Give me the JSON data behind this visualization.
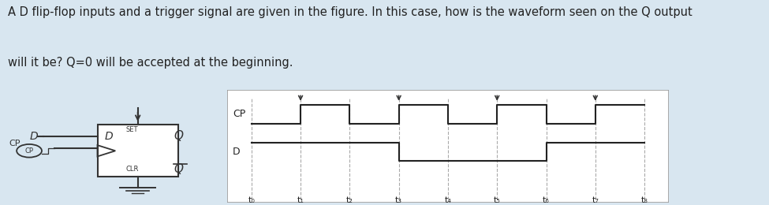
{
  "bg_color": "#d8e6f0",
  "box_bg": "#ffffff",
  "text_color": "#222222",
  "title_line1": "A D flip-flop inputs and a trigger signal are given in the figure. In this case, how is the waveform seen on the Q output",
  "title_line2": "will it be? Q=0 will be accepted at the beginning.",
  "title_fontsize": 10.5,
  "cp_label": "CP",
  "d_label": "D",
  "time_labels": [
    "t₀",
    "t₁",
    "t₂",
    "t₃",
    "t₄",
    "t₅",
    "t₆",
    "t₇",
    "t₈"
  ],
  "cp_times_x": [
    0,
    1,
    1,
    2,
    2,
    3,
    3,
    4,
    4,
    5,
    5,
    6,
    6,
    7,
    7,
    8
  ],
  "cp_vals": [
    0,
    0,
    1,
    1,
    0,
    0,
    1,
    1,
    0,
    0,
    1,
    1,
    0,
    0,
    1,
    1
  ],
  "d_times_x": [
    0,
    3,
    3,
    6,
    6,
    8
  ],
  "d_vals": [
    1,
    1,
    0,
    0,
    1,
    1
  ],
  "rise_times": [
    1,
    3,
    5,
    7
  ],
  "num_cols": 8,
  "wave_line_color": "#222222",
  "wave_dash_color": "#aaaaaa",
  "border_color": "#999999"
}
